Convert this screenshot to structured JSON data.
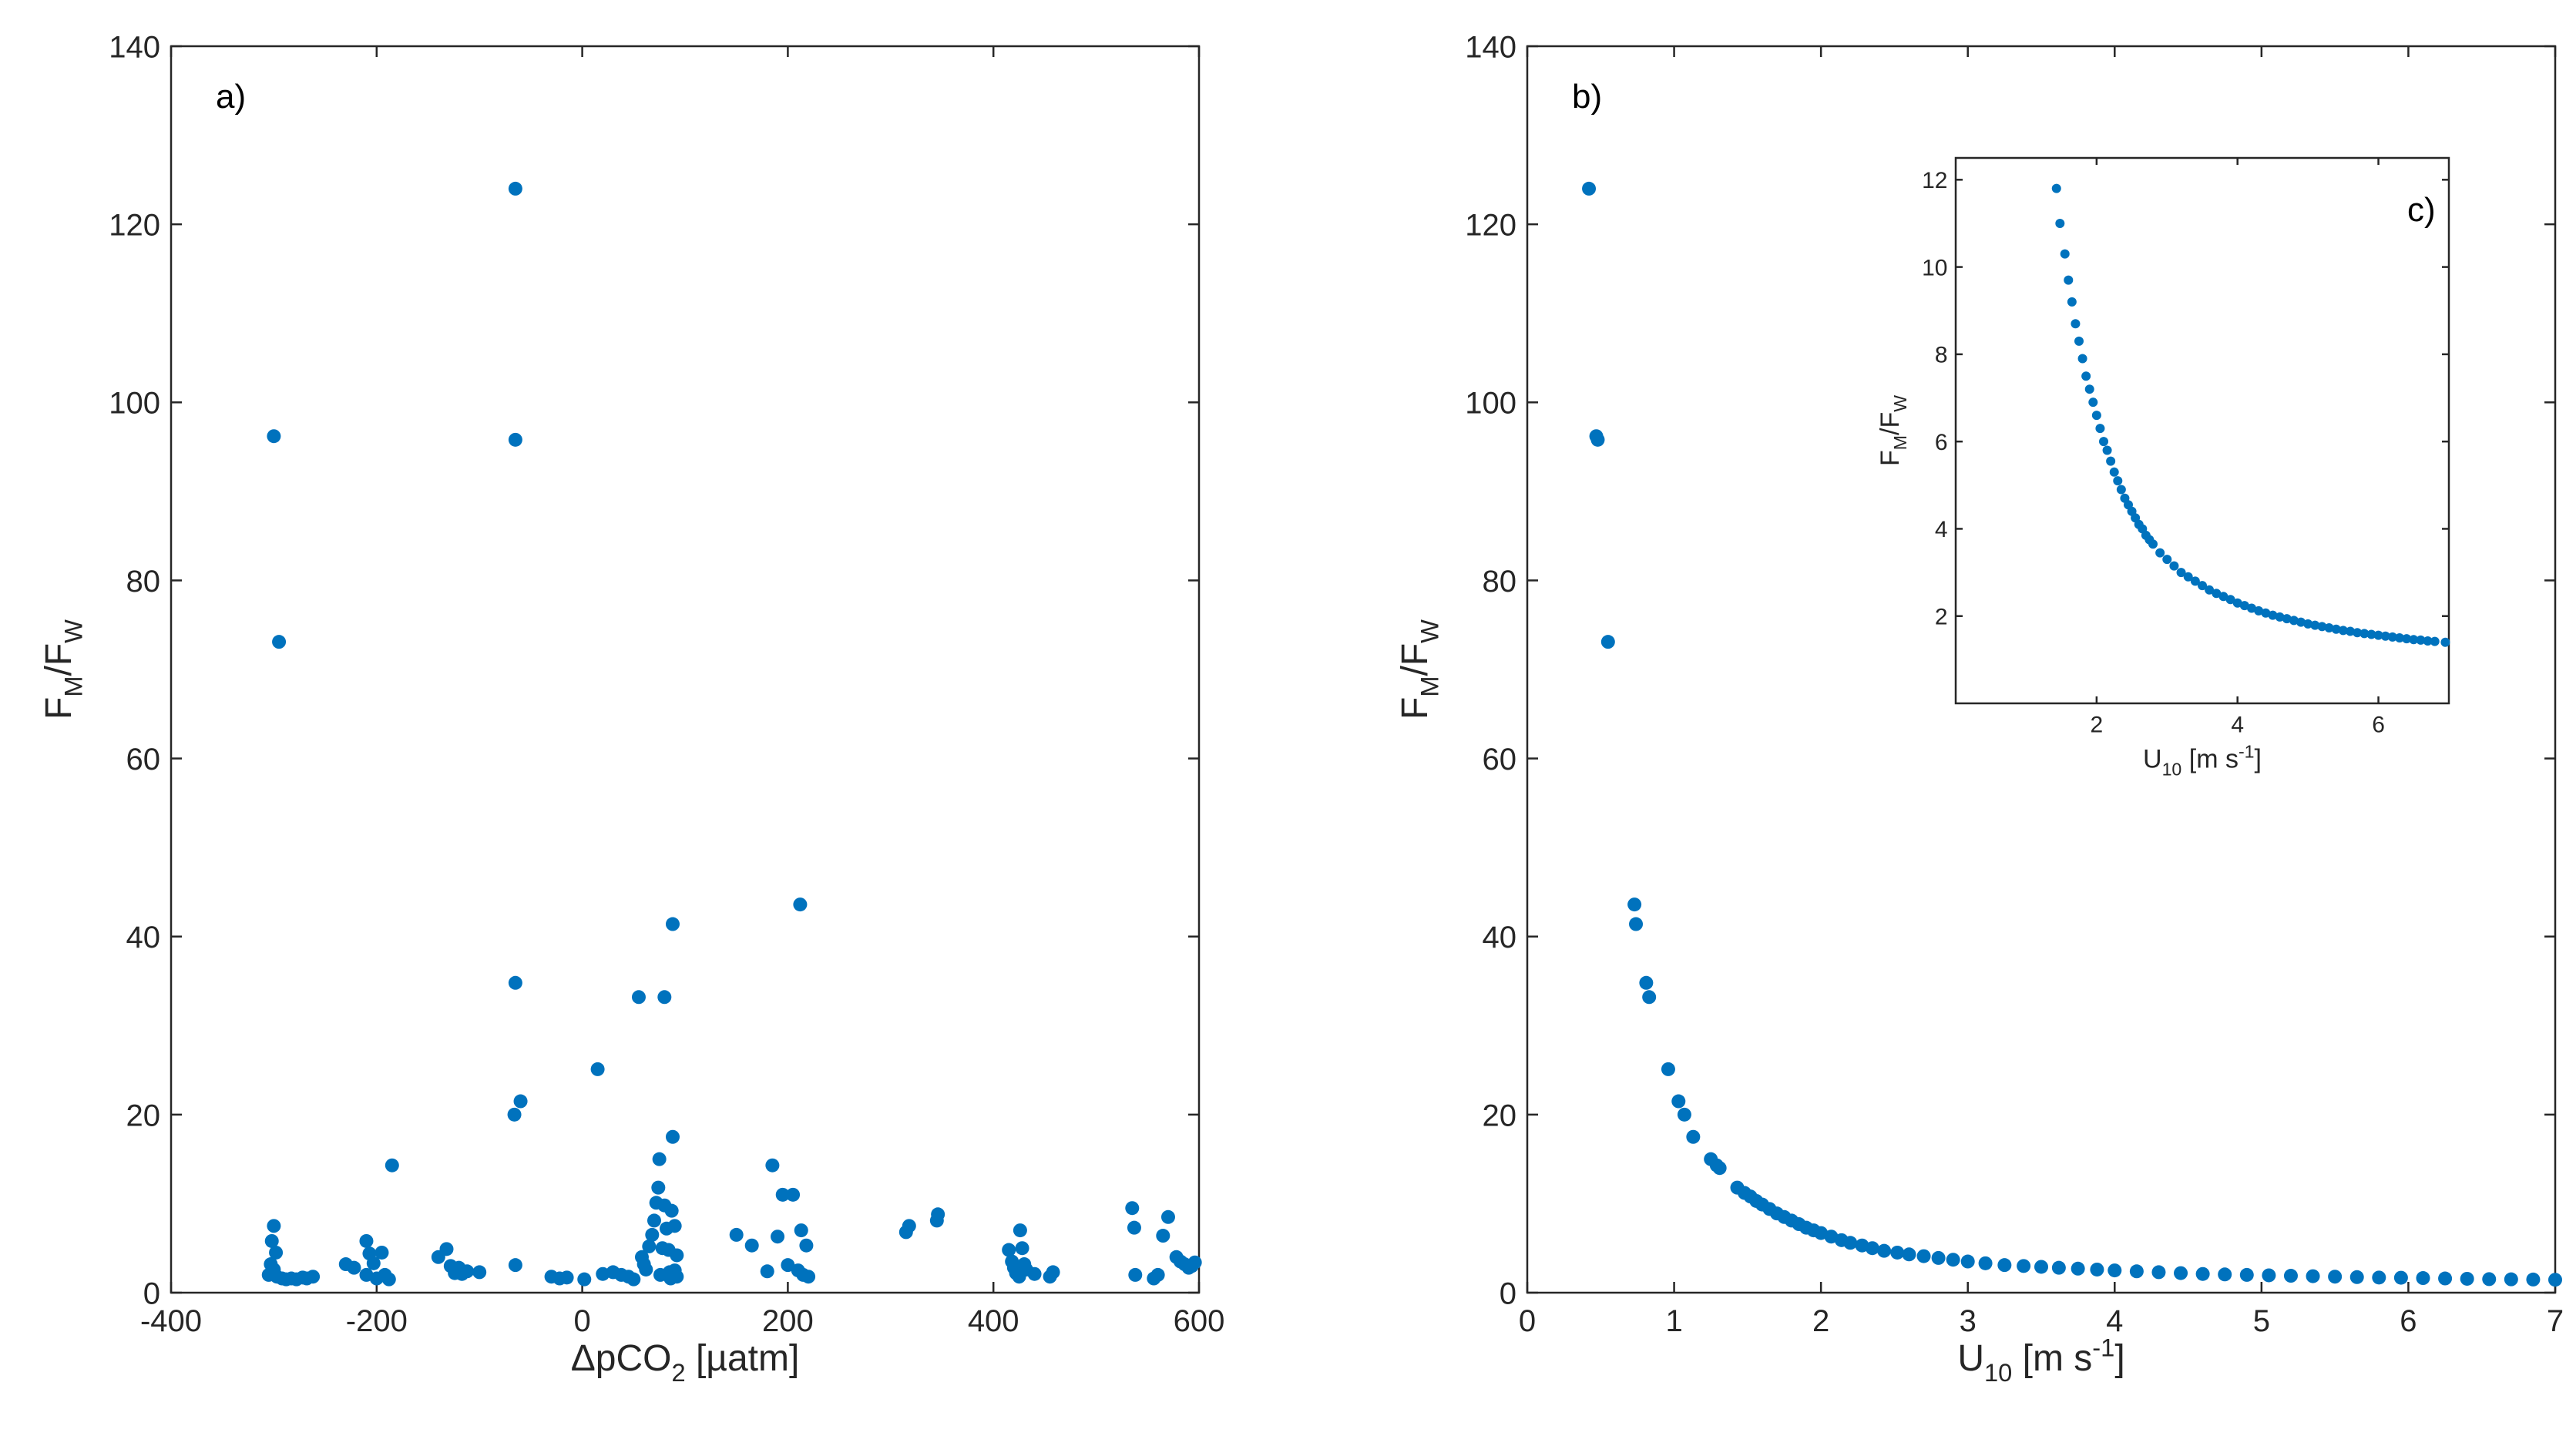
{
  "chart_data": [
    {
      "type": "scatter",
      "panel_label": "a)",
      "xlabel": {
        "main": "ΔpCO",
        "sub": "2",
        "unit": " [µatm]"
      },
      "ylabel": {
        "F": "F",
        "M": "M",
        "slash": "/F",
        "W": "W"
      },
      "xlim": [
        -400,
        600
      ],
      "ylim": [
        0,
        140
      ],
      "xticks": [
        -400,
        -200,
        0,
        200,
        400,
        600
      ],
      "yticks": [
        0,
        20,
        40,
        60,
        80,
        100,
        120,
        140
      ],
      "color": "#0072BD",
      "grid": false,
      "points": [
        [
          -300,
          96.2
        ],
        [
          -295,
          73.1
        ],
        [
          -300,
          7.5
        ],
        [
          -302,
          5.8
        ],
        [
          -298,
          4.5
        ],
        [
          -303,
          3.2
        ],
        [
          -300,
          2.6
        ],
        [
          -305,
          2.0
        ],
        [
          -297,
          1.8
        ],
        [
          -292,
          1.6
        ],
        [
          -288,
          1.5
        ],
        [
          -283,
          1.6
        ],
        [
          -278,
          1.5
        ],
        [
          -272,
          1.7
        ],
        [
          -268,
          1.6
        ],
        [
          -262,
          1.8
        ],
        [
          -230,
          3.2
        ],
        [
          -222,
          2.8
        ],
        [
          -210,
          5.8
        ],
        [
          -207,
          4.4
        ],
        [
          -203,
          3.3
        ],
        [
          -210,
          2.0
        ],
        [
          -200,
          1.6
        ],
        [
          -195,
          4.5
        ],
        [
          -192,
          2.0
        ],
        [
          -188,
          1.5
        ],
        [
          -185,
          14.3
        ],
        [
          -140,
          4.0
        ],
        [
          -132,
          4.9
        ],
        [
          -128,
          3.0
        ],
        [
          -124,
          2.2
        ],
        [
          -120,
          2.8
        ],
        [
          -117,
          2.1
        ],
        [
          -112,
          2.4
        ],
        [
          -100,
          2.3
        ],
        [
          -65,
          124.0
        ],
        [
          -65,
          95.8
        ],
        [
          -65,
          34.8
        ],
        [
          -66,
          20.0
        ],
        [
          -60,
          21.5
        ],
        [
          -65,
          3.1
        ],
        [
          -30,
          1.8
        ],
        [
          -22,
          1.6
        ],
        [
          -15,
          1.7
        ],
        [
          2,
          1.5
        ],
        [
          15,
          25.1
        ],
        [
          20,
          2.1
        ],
        [
          30,
          2.3
        ],
        [
          38,
          2.0
        ],
        [
          45,
          1.8
        ],
        [
          50,
          1.5
        ],
        [
          55,
          33.2
        ],
        [
          58,
          4.0
        ],
        [
          60,
          3.2
        ],
        [
          62,
          2.6
        ],
        [
          65,
          5.2
        ],
        [
          68,
          6.5
        ],
        [
          70,
          8.1
        ],
        [
          72,
          10.1
        ],
        [
          74,
          11.8
        ],
        [
          75,
          15.0
        ],
        [
          76,
          2.0
        ],
        [
          78,
          5.0
        ],
        [
          80,
          9.8
        ],
        [
          80,
          33.2
        ],
        [
          82,
          7.2
        ],
        [
          84,
          4.8
        ],
        [
          85,
          2.3
        ],
        [
          86,
          1.6
        ],
        [
          87,
          9.2
        ],
        [
          88,
          17.5
        ],
        [
          88,
          41.4
        ],
        [
          90,
          7.5
        ],
        [
          90,
          2.5
        ],
        [
          92,
          4.2
        ],
        [
          92,
          1.8
        ],
        [
          150,
          6.5
        ],
        [
          165,
          5.3
        ],
        [
          180,
          2.4
        ],
        [
          185,
          14.3
        ],
        [
          190,
          6.3
        ],
        [
          195,
          11.0
        ],
        [
          200,
          3.1
        ],
        [
          205,
          11.0
        ],
        [
          210,
          2.5
        ],
        [
          212,
          43.6
        ],
        [
          213,
          7.0
        ],
        [
          215,
          2.0
        ],
        [
          218,
          5.3
        ],
        [
          220,
          1.8
        ],
        [
          315,
          6.8
        ],
        [
          318,
          7.5
        ],
        [
          345,
          8.1
        ],
        [
          346,
          8.8
        ],
        [
          415,
          4.8
        ],
        [
          418,
          3.5
        ],
        [
          420,
          2.8
        ],
        [
          422,
          2.2
        ],
        [
          425,
          1.8
        ],
        [
          426,
          7.0
        ],
        [
          428,
          5.0
        ],
        [
          430,
          3.2
        ],
        [
          432,
          2.6
        ],
        [
          440,
          2.1
        ],
        [
          455,
          1.8
        ],
        [
          458,
          2.3
        ],
        [
          535,
          9.5
        ],
        [
          537,
          7.3
        ],
        [
          538,
          2.0
        ],
        [
          556,
          1.6
        ],
        [
          560,
          2.0
        ],
        [
          565,
          6.4
        ],
        [
          570,
          8.5
        ],
        [
          578,
          4.0
        ],
        [
          582,
          3.5
        ],
        [
          586,
          3.2
        ],
        [
          590,
          2.8
        ],
        [
          593,
          3.0
        ],
        [
          596,
          3.4
        ]
      ]
    },
    {
      "type": "scatter",
      "panel_label": "b)",
      "xlabel": {
        "main": "U",
        "sub": "10",
        "unit": " [m s",
        "sup": "-1",
        "close": "]"
      },
      "ylabel": {
        "F": "F",
        "M": "M",
        "slash": "/F",
        "W": "W"
      },
      "xlim": [
        0,
        7
      ],
      "ylim": [
        0,
        140
      ],
      "xticks": [
        0,
        1,
        2,
        3,
        4,
        5,
        6,
        7
      ],
      "yticks": [
        0,
        20,
        40,
        60,
        80,
        100,
        120,
        140
      ],
      "color": "#0072BD",
      "grid": false,
      "points": [
        [
          0.42,
          124.0
        ],
        [
          0.47,
          96.2
        ],
        [
          0.48,
          95.8
        ],
        [
          0.55,
          73.1
        ],
        [
          0.73,
          43.6
        ],
        [
          0.74,
          41.4
        ],
        [
          0.81,
          34.8
        ],
        [
          0.83,
          33.2
        ],
        [
          0.96,
          25.1
        ],
        [
          1.03,
          21.5
        ],
        [
          1.07,
          20.0
        ],
        [
          1.13,
          17.5
        ],
        [
          1.25,
          15.0
        ],
        [
          1.29,
          14.3
        ],
        [
          1.31,
          14.0
        ],
        [
          1.43,
          11.8
        ],
        [
          1.48,
          11.2
        ],
        [
          1.52,
          10.8
        ],
        [
          1.56,
          10.3
        ],
        [
          1.6,
          9.9
        ],
        [
          1.65,
          9.4
        ],
        [
          1.7,
          8.9
        ],
        [
          1.75,
          8.5
        ],
        [
          1.8,
          8.1
        ],
        [
          1.85,
          7.7
        ],
        [
          1.9,
          7.3
        ],
        [
          1.95,
          7.0
        ],
        [
          2.0,
          6.7
        ],
        [
          2.07,
          6.3
        ],
        [
          2.14,
          5.9
        ],
        [
          2.2,
          5.6
        ],
        [
          2.28,
          5.3
        ],
        [
          2.35,
          5.0
        ],
        [
          2.43,
          4.7
        ],
        [
          2.52,
          4.5
        ],
        [
          2.6,
          4.3
        ],
        [
          2.7,
          4.1
        ],
        [
          2.8,
          3.9
        ],
        [
          2.9,
          3.7
        ],
        [
          3.0,
          3.5
        ],
        [
          3.12,
          3.3
        ],
        [
          3.25,
          3.1
        ],
        [
          3.38,
          3.0
        ],
        [
          3.5,
          2.9
        ],
        [
          3.62,
          2.8
        ],
        [
          3.75,
          2.7
        ],
        [
          3.88,
          2.6
        ],
        [
          4.0,
          2.5
        ],
        [
          4.15,
          2.4
        ],
        [
          4.3,
          2.3
        ],
        [
          4.45,
          2.2
        ],
        [
          4.6,
          2.1
        ],
        [
          4.75,
          2.05
        ],
        [
          4.9,
          2.0
        ],
        [
          5.05,
          1.95
        ],
        [
          5.2,
          1.9
        ],
        [
          5.35,
          1.85
        ],
        [
          5.5,
          1.8
        ],
        [
          5.65,
          1.75
        ],
        [
          5.8,
          1.7
        ],
        [
          5.95,
          1.68
        ],
        [
          6.1,
          1.64
        ],
        [
          6.25,
          1.6
        ],
        [
          6.4,
          1.56
        ],
        [
          6.55,
          1.52
        ],
        [
          6.7,
          1.5
        ],
        [
          6.85,
          1.48
        ],
        [
          7.0,
          1.45
        ]
      ]
    },
    {
      "type": "scatter",
      "panel_label": "c)",
      "xlabel": {
        "main": "U",
        "sub": "10",
        "unit": " [m s",
        "sup": "-1",
        "close": "]"
      },
      "ylabel": {
        "F": "F",
        "M": "M",
        "slash": "/F",
        "W": "W"
      },
      "xlim": [
        0,
        7
      ],
      "ylim": [
        0,
        12.5
      ],
      "xticks": [
        2,
        4,
        6
      ],
      "yticks": [
        2,
        4,
        6,
        8,
        10,
        12
      ],
      "color": "#0072BD",
      "grid": false,
      "points": [
        [
          1.43,
          11.8
        ],
        [
          1.48,
          11.0
        ],
        [
          1.55,
          10.3
        ],
        [
          1.6,
          9.7
        ],
        [
          1.65,
          9.2
        ],
        [
          1.7,
          8.7
        ],
        [
          1.75,
          8.3
        ],
        [
          1.8,
          7.9
        ],
        [
          1.85,
          7.5
        ],
        [
          1.9,
          7.2
        ],
        [
          1.95,
          6.9
        ],
        [
          2.0,
          6.6
        ],
        [
          2.05,
          6.3
        ],
        [
          2.1,
          6.0
        ],
        [
          2.15,
          5.8
        ],
        [
          2.2,
          5.55
        ],
        [
          2.25,
          5.3
        ],
        [
          2.3,
          5.1
        ],
        [
          2.35,
          4.9
        ],
        [
          2.4,
          4.7
        ],
        [
          2.45,
          4.55
        ],
        [
          2.5,
          4.4
        ],
        [
          2.55,
          4.25
        ],
        [
          2.6,
          4.1
        ],
        [
          2.65,
          4.0
        ],
        [
          2.7,
          3.85
        ],
        [
          2.75,
          3.75
        ],
        [
          2.8,
          3.65
        ],
        [
          2.9,
          3.45
        ],
        [
          3.0,
          3.3
        ],
        [
          3.1,
          3.15
        ],
        [
          3.2,
          3.0
        ],
        [
          3.3,
          2.9
        ],
        [
          3.4,
          2.8
        ],
        [
          3.5,
          2.7
        ],
        [
          3.6,
          2.6
        ],
        [
          3.7,
          2.52
        ],
        [
          3.8,
          2.45
        ],
        [
          3.9,
          2.38
        ],
        [
          4.0,
          2.3
        ],
        [
          4.1,
          2.24
        ],
        [
          4.2,
          2.18
        ],
        [
          4.3,
          2.12
        ],
        [
          4.4,
          2.07
        ],
        [
          4.5,
          2.02
        ],
        [
          4.6,
          1.98
        ],
        [
          4.7,
          1.94
        ],
        [
          4.8,
          1.9
        ],
        [
          4.9,
          1.86
        ],
        [
          5.0,
          1.82
        ],
        [
          5.1,
          1.79
        ],
        [
          5.2,
          1.76
        ],
        [
          5.3,
          1.73
        ],
        [
          5.4,
          1.7
        ],
        [
          5.5,
          1.67
        ],
        [
          5.6,
          1.65
        ],
        [
          5.7,
          1.62
        ],
        [
          5.8,
          1.6
        ],
        [
          5.9,
          1.58
        ],
        [
          6.0,
          1.56
        ],
        [
          6.1,
          1.54
        ],
        [
          6.2,
          1.52
        ],
        [
          6.3,
          1.5
        ],
        [
          6.4,
          1.48
        ],
        [
          6.5,
          1.46
        ],
        [
          6.6,
          1.45
        ],
        [
          6.7,
          1.43
        ],
        [
          6.8,
          1.42
        ],
        [
          6.95,
          1.4
        ]
      ]
    }
  ]
}
